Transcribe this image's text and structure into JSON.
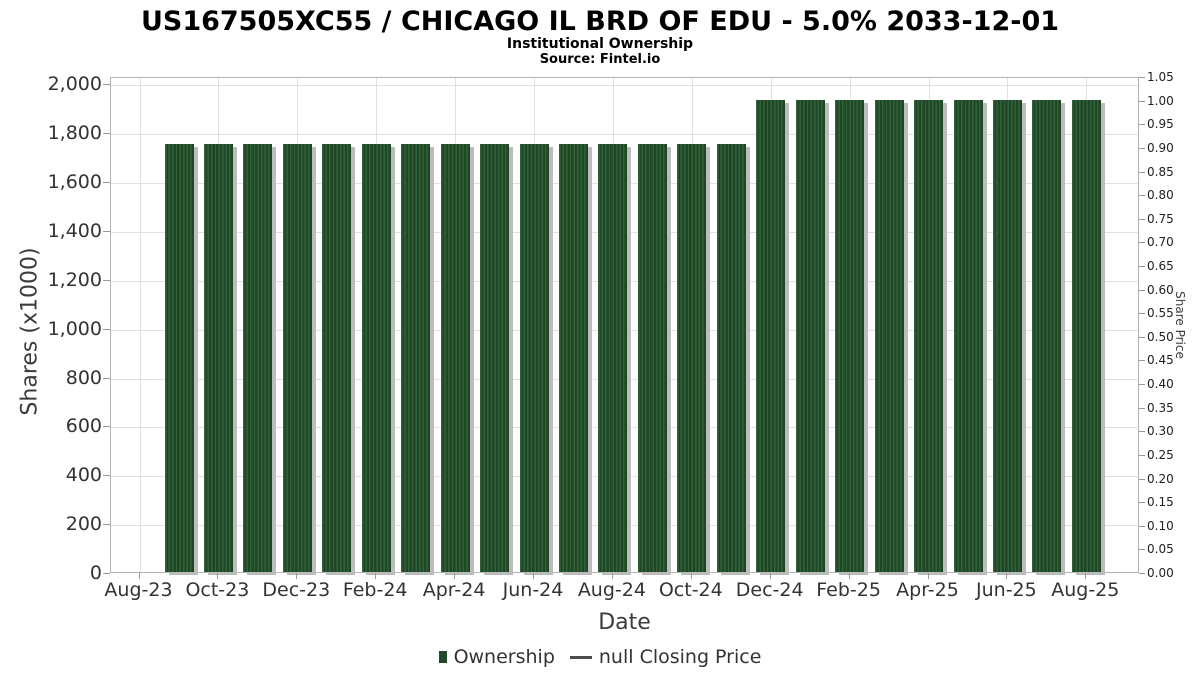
{
  "header": {
    "title": "US167505XC55 / CHICAGO IL BRD OF EDU - 5.0% 2033-12-01",
    "subtitle": "Institutional Ownership",
    "source": "Source: Fintel.io"
  },
  "axes": {
    "left_label": "Shares (x1000)",
    "right_label": "Share Price",
    "x_label": "Date"
  },
  "legend": {
    "ownership_label": "Ownership",
    "price_label": "null Closing Price"
  },
  "colors": {
    "bar_dark": "#1f4726",
    "bar_light": "#326038",
    "bar_shadow": "#bcbcbc",
    "legend_marker": "#24492a",
    "grid_line": "#e0e0e0",
    "plot_border": "#b3b3b3",
    "tick_mark": "#999999"
  },
  "chart_data": {
    "type": "bar",
    "title": "US167505XC55 / CHICAGO IL BRD OF EDU - 5.0% 2033-12-01",
    "subtitle": "Institutional Ownership",
    "source": "Source: Fintel.io",
    "xlabel": "Date",
    "ylabel_left": "Shares (x1000)",
    "ylabel_right": "Share Price",
    "ylim_left": [
      0,
      2030
    ],
    "ylim_right": [
      0,
      1.05
    ],
    "grid": true,
    "legend_position": "bottom",
    "categories": [
      "Sep-23",
      "Oct-23",
      "Nov-23",
      "Dec-23",
      "Jan-24",
      "Feb-24",
      "Mar-24",
      "Apr-24",
      "May-24",
      "Jun-24",
      "Jul-24",
      "Aug-24",
      "Sep-24",
      "Oct-24",
      "Nov-24",
      "Dec-24",
      "Jan-25",
      "Feb-25",
      "Mar-25",
      "Apr-25",
      "May-25",
      "Jun-25",
      "Jul-25",
      "Aug-25"
    ],
    "series": [
      {
        "name": "Ownership",
        "unit": "shares (x1000)",
        "values": [
          1750,
          1750,
          1750,
          1750,
          1750,
          1750,
          1750,
          1750,
          1750,
          1750,
          1750,
          1750,
          1750,
          1750,
          1750,
          1930,
          1930,
          1930,
          1930,
          1930,
          1930,
          1930,
          1930,
          1930
        ]
      }
    ],
    "x_ticks": [
      {
        "m": 0,
        "label": "Aug-23"
      },
      {
        "m": 2,
        "label": "Oct-23"
      },
      {
        "m": 4,
        "label": "Dec-23"
      },
      {
        "m": 6,
        "label": "Feb-24"
      },
      {
        "m": 8,
        "label": "Apr-24"
      },
      {
        "m": 10,
        "label": "Jun-24"
      },
      {
        "m": 12,
        "label": "Aug-24"
      },
      {
        "m": 14,
        "label": "Oct-24"
      },
      {
        "m": 16,
        "label": "Dec-24"
      },
      {
        "m": 18,
        "label": "Feb-25"
      },
      {
        "m": 20,
        "label": "Apr-25"
      },
      {
        "m": 22,
        "label": "Jun-25"
      },
      {
        "m": 24,
        "label": "Aug-25"
      }
    ],
    "left_ticks": [
      {
        "v": 0,
        "label": "0"
      },
      {
        "v": 200,
        "label": "200"
      },
      {
        "v": 400,
        "label": "400"
      },
      {
        "v": 600,
        "label": "600"
      },
      {
        "v": 800,
        "label": "800"
      },
      {
        "v": 1000,
        "label": "1,000"
      },
      {
        "v": 1200,
        "label": "1,200"
      },
      {
        "v": 1400,
        "label": "1,400"
      },
      {
        "v": 1600,
        "label": "1,600"
      },
      {
        "v": 1800,
        "label": "1,800"
      },
      {
        "v": 2000,
        "label": "2,000"
      }
    ],
    "right_ticks": [
      {
        "v": 0.0,
        "label": "0.00"
      },
      {
        "v": 0.05,
        "label": "0.05"
      },
      {
        "v": 0.1,
        "label": "0.10"
      },
      {
        "v": 0.15,
        "label": "0.15"
      },
      {
        "v": 0.2,
        "label": "0.20"
      },
      {
        "v": 0.25,
        "label": "0.25"
      },
      {
        "v": 0.3,
        "label": "0.30"
      },
      {
        "v": 0.35,
        "label": "0.35"
      },
      {
        "v": 0.4,
        "label": "0.40"
      },
      {
        "v": 0.45,
        "label": "0.45"
      },
      {
        "v": 0.5,
        "label": "0.50"
      },
      {
        "v": 0.55,
        "label": "0.55"
      },
      {
        "v": 0.6,
        "label": "0.60"
      },
      {
        "v": 0.65,
        "label": "0.65"
      },
      {
        "v": 0.7,
        "label": "0.70"
      },
      {
        "v": 0.75,
        "label": "0.75"
      },
      {
        "v": 0.8,
        "label": "0.80"
      },
      {
        "v": 0.85,
        "label": "0.85"
      },
      {
        "v": 0.9,
        "label": "0.90"
      },
      {
        "v": 0.95,
        "label": "0.95"
      },
      {
        "v": 1.0,
        "label": "1.00"
      },
      {
        "v": 1.05,
        "label": "1.05"
      }
    ]
  }
}
